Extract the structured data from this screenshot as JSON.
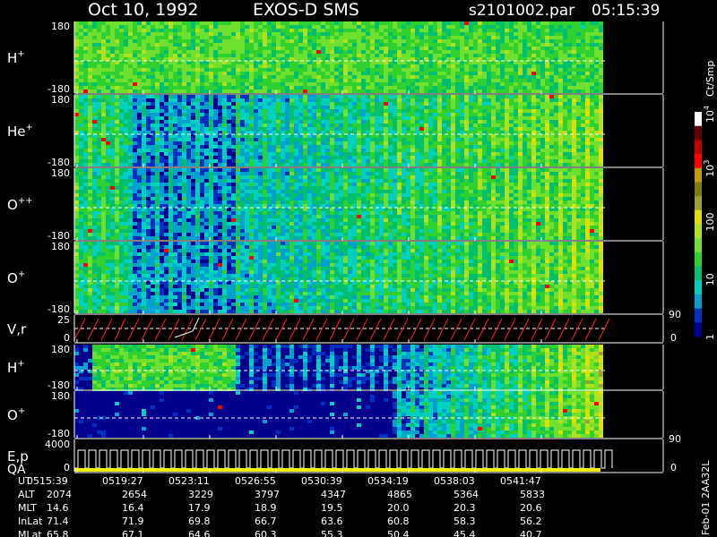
{
  "header": {
    "date": "Oct 10, 1992",
    "instrument": "EXOS-D SMS",
    "file": "s2101002.par",
    "time": "05:15:39"
  },
  "colors": {
    "background": "#000000",
    "dashed_line": "#ffffff",
    "scale": [
      "#00008c",
      "#0030c0",
      "#00a0d0",
      "#00d0c0",
      "#00c070",
      "#30d030",
      "#70e030",
      "#b0e020",
      "#e0e000",
      "#a0a030",
      "#808000",
      "#c0a000",
      "#ff0000",
      "#c00000",
      "#600000",
      "#ffffff"
    ]
  },
  "color_bar": {
    "unit": "Ct/Smp",
    "ticks": [
      {
        "mant": "10",
        "exp": "4",
        "value": 10000
      },
      {
        "mant": "10",
        "exp": "3",
        "value": 1000
      },
      {
        "mant": "100",
        "exp": "",
        "value": 100
      },
      {
        "mant": "10",
        "exp": "",
        "value": 10
      },
      {
        "mant": "1",
        "exp": "",
        "value": 1
      }
    ],
    "range": [
      1,
      10000
    ]
  },
  "chart_data": {
    "type": "heatmap",
    "x_range": [
      "05:15:39",
      "05:43:30"
    ],
    "panels": [
      {
        "id": "h1",
        "label": "H",
        "sup": "+",
        "ymax": "180",
        "ymin": "-180",
        "kind": "spec",
        "intensity": "high"
      },
      {
        "id": "he",
        "label": "He",
        "sup": "+",
        "ymax": "180",
        "ymin": "-180",
        "kind": "spec",
        "intensity": "mid"
      },
      {
        "id": "opp",
        "label": "O",
        "sup": "++",
        "ymax": "180",
        "ymin": "-180",
        "kind": "spec",
        "intensity": "mid"
      },
      {
        "id": "o1",
        "label": "O",
        "sup": "+",
        "ymax": "180",
        "ymin": "-180",
        "kind": "spec",
        "intensity": "mid"
      },
      {
        "id": "vr",
        "label": "V,r",
        "sup": "",
        "ymax": "25",
        "ymin": "0",
        "right_top": "90",
        "right_bottom": "0",
        "kind": "line"
      },
      {
        "id": "h2",
        "label": "H",
        "sup": "+",
        "ymax": "180",
        "ymin": "-180",
        "kind": "spec",
        "intensity": "low"
      },
      {
        "id": "o2",
        "label": "O",
        "sup": "+",
        "ymax": "180",
        "ymin": "-180",
        "kind": "spec",
        "intensity": "low"
      },
      {
        "id": "ep",
        "label": "E,p",
        "label2": "QA",
        "sup": "",
        "ymax": "4000",
        "ymin": "0",
        "right_top": "90",
        "right_bottom": "0",
        "kind": "step"
      }
    ],
    "table": {
      "rows": [
        {
          "name": "UT",
          "values": [
            "0515:39",
            "0519:27",
            "0523:11",
            "0526:55",
            "0530:39",
            "0534:19",
            "0538:03",
            "0541:47"
          ]
        },
        {
          "name": "ALT",
          "values": [
            "2074",
            "2654",
            "3229",
            "3797",
            "4347",
            "4865",
            "5364",
            "5833"
          ]
        },
        {
          "name": "MLT",
          "values": [
            "14.6",
            "16.4",
            "17.9",
            "18.9",
            "19.5",
            "20.0",
            "20.3",
            "20.6"
          ]
        },
        {
          "name": "InLat",
          "values": [
            "71.4",
            "71.9",
            "69.8",
            "66.7",
            "63.6",
            "60.8",
            "58.3",
            "56.2"
          ]
        },
        {
          "name": "MLat",
          "values": [
            "65.8",
            "67.1",
            "64.6",
            "60.3",
            "55.3",
            "50.4",
            "45.4",
            "40.7"
          ]
        }
      ]
    }
  },
  "footer": {
    "stamp": "Feb-01 2AA32L"
  }
}
